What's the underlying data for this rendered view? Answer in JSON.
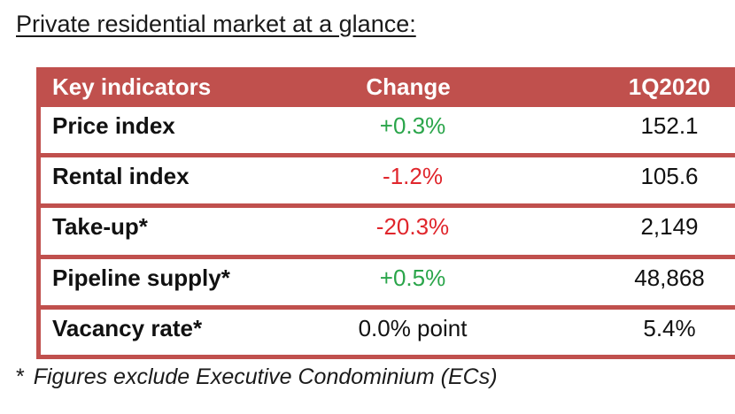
{
  "title": "Private residential market at a glance:",
  "table": {
    "headers": [
      "Key indicators",
      "Change",
      "1Q2020"
    ],
    "rows": [
      {
        "indicator": "Price index",
        "change": "+0.3%",
        "value": "152.1"
      },
      {
        "indicator": "Rental index",
        "change": "-1.2%",
        "value": "105.6"
      },
      {
        "indicator": "Take-up*",
        "change": "-20.3%",
        "value": "2,149"
      },
      {
        "indicator": "Pipeline supply*",
        "change": "+0.5%",
        "value": "48,868"
      },
      {
        "indicator": "Vacancy rate*",
        "change": "0.0% point",
        "value": "5.4%"
      }
    ]
  },
  "footnote": {
    "mark": "*",
    "text": "Figures exclude Executive Condominium (ECs)"
  },
  "colors": {
    "header_bg": "#c0504d",
    "positive": "#2aa54a",
    "negative": "#e0262c"
  }
}
